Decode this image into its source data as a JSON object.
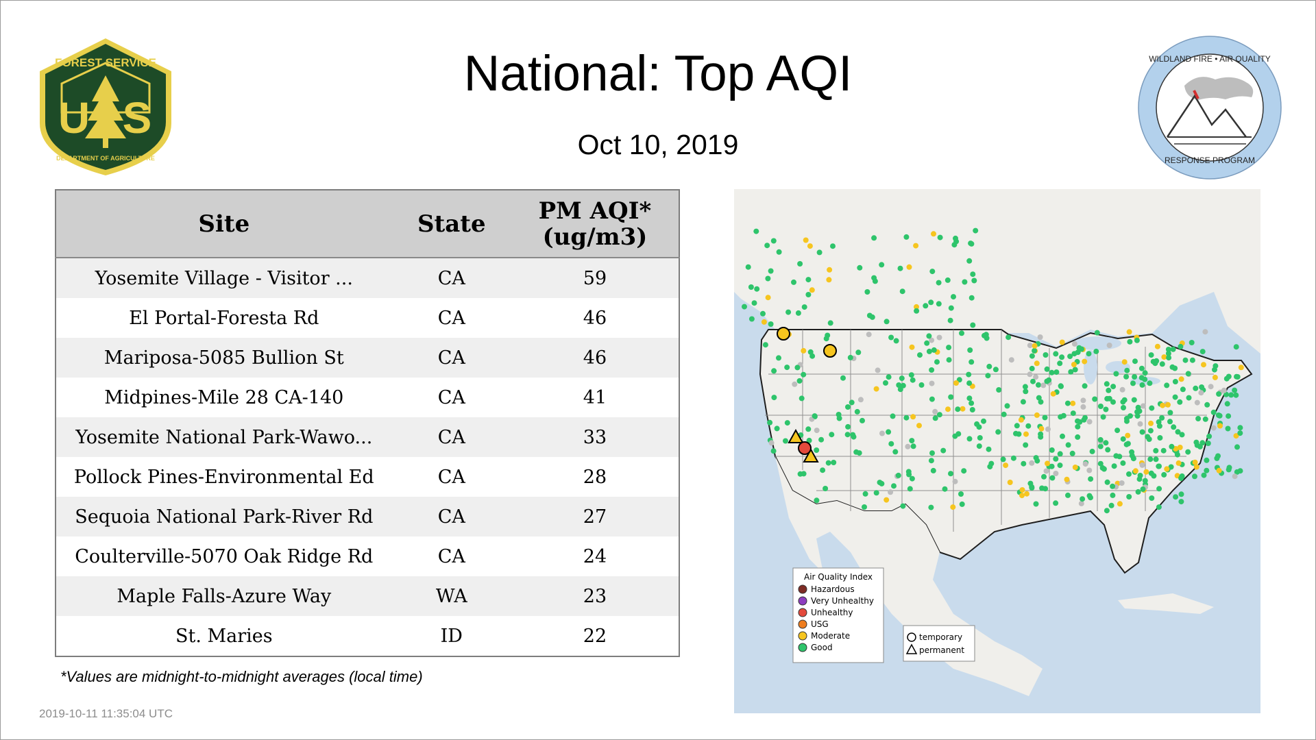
{
  "header": {
    "title": "National: Top AQI",
    "date": "Oct 10, 2019"
  },
  "logos": {
    "usfs": {
      "top_text": "FOREST SERVICE",
      "letters": "U S",
      "bottom_text": "DEPARTMENT OF AGRICULTURE",
      "colors": {
        "green": "#1d4b27",
        "gold": "#e7cf4b"
      }
    },
    "program": {
      "top_text": "WILDLAND FIRE • AIR QUALITY",
      "bottom_text": "RESPONSE PROGRAM",
      "ring_color": "#b3d1ec"
    }
  },
  "table": {
    "headers": {
      "site": "Site",
      "state": "State",
      "aqi_line1": "PM AQI*",
      "aqi_line2": "(ug/m3)"
    },
    "rows": [
      {
        "site": "Yosemite Village - Visitor ...",
        "state": "CA",
        "aqi": "59"
      },
      {
        "site": "El Portal-Foresta Rd",
        "state": "CA",
        "aqi": "46"
      },
      {
        "site": "Mariposa-5085 Bullion St",
        "state": "CA",
        "aqi": "46"
      },
      {
        "site": "Midpines-Mile 28 CA-140",
        "state": "CA",
        "aqi": "41"
      },
      {
        "site": "Yosemite National Park-Wawo...",
        "state": "CA",
        "aqi": "33"
      },
      {
        "site": "Pollock Pines-Environmental Ed",
        "state": "CA",
        "aqi": "28"
      },
      {
        "site": "Sequoia National Park-River Rd",
        "state": "CA",
        "aqi": "27"
      },
      {
        "site": "Coulterville-5070 Oak Ridge Rd",
        "state": "CA",
        "aqi": "24"
      },
      {
        "site": "Maple Falls-Azure Way",
        "state": "WA",
        "aqi": "23"
      },
      {
        "site": "St. Maries",
        "state": "ID",
        "aqi": "22"
      }
    ]
  },
  "footnote": "*Values are midnight-to-midnight averages (local time)",
  "timestamp": "2019-10-11 11:35:04 UTC",
  "map": {
    "colors": {
      "water": "#c9dbec",
      "land": "#f0efeb",
      "border": "#1e1e1e",
      "state_line": "#8f8f8f"
    },
    "legend": {
      "title": "Air Quality Index",
      "items": [
        {
          "label": "Hazardous",
          "color": "#7e2c25"
        },
        {
          "label": "Very Unhealthy",
          "color": "#8d3dbf"
        },
        {
          "label": "Unhealthy",
          "color": "#e34a3c"
        },
        {
          "label": "USG",
          "color": "#ee7d1f"
        },
        {
          "label": "Moderate",
          "color": "#f6c51f"
        },
        {
          "label": "Good",
          "color": "#2ec46b"
        }
      ]
    },
    "markers_legend": {
      "temporary": "temporary",
      "permanent": "permanent"
    }
  }
}
